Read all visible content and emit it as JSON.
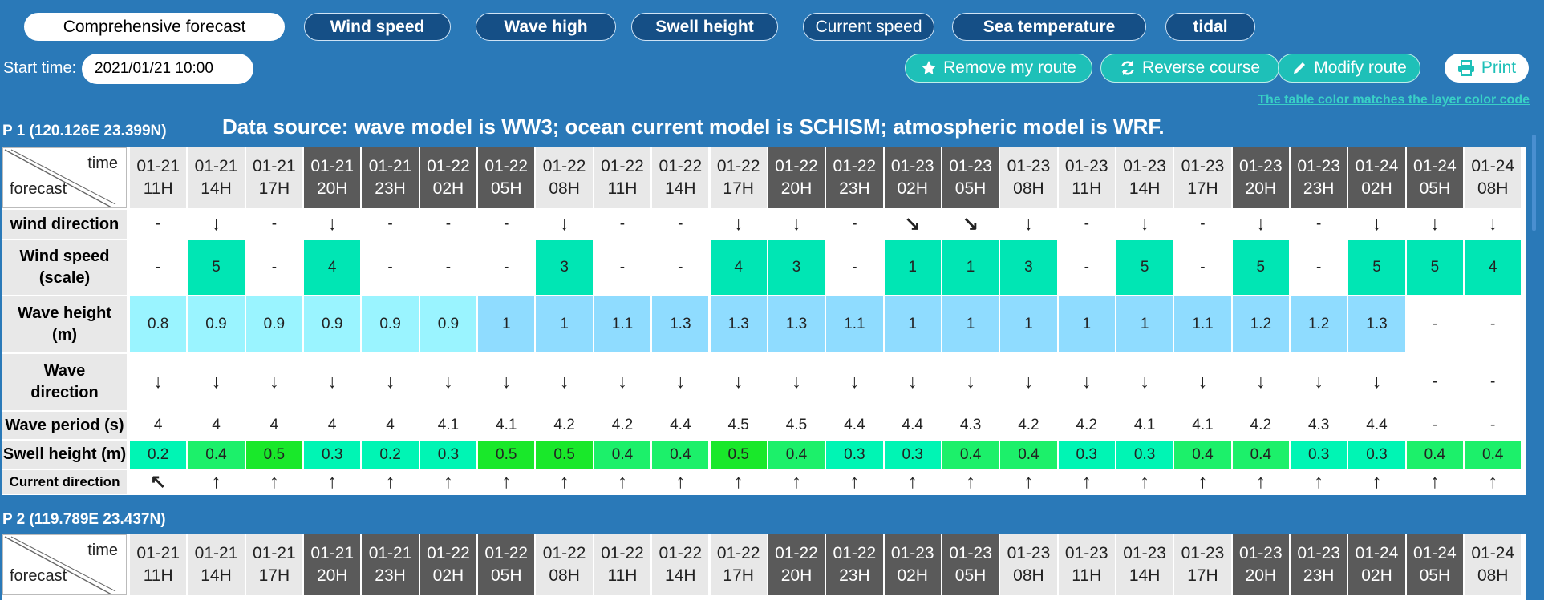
{
  "tabs": [
    {
      "label": "Comprehensive forecast",
      "active": true
    },
    {
      "label": "Wind speed"
    },
    {
      "label": "Wave high"
    },
    {
      "label": "Swell height"
    },
    {
      "label": "Current speed",
      "outline": true
    },
    {
      "label": "Sea temperature"
    },
    {
      "label": "tidal"
    }
  ],
  "start": {
    "label": "Start time:",
    "value": "2021/01/21 10:00"
  },
  "actions": [
    {
      "label": "Remove my route",
      "icon": "star-icon"
    },
    {
      "label": "Reverse course",
      "icon": "refresh-icon"
    },
    {
      "label": "Modify route",
      "icon": "pencil-icon"
    }
  ],
  "print_label": "Print",
  "color_note": "The table color matches the layer color code",
  "source_note": "Data source: wave model is WW3; ocean current model is SCHISM; atmospheric model is WRF.",
  "corner": {
    "time": "time",
    "forecast": "forecast"
  },
  "colors": {
    "background": "#2a79b8",
    "header_dark": "#5a5a5a",
    "header_light": "#e8e8e8",
    "wind_fill": "#00e6b4",
    "wave_light": "#9af4ff",
    "wave_mid": "#8fdcff",
    "swell_a": "#00f5b4",
    "swell_b": "#1cf06a",
    "swell_c": "#19e82a",
    "accent": "#1ec0b8"
  },
  "times": [
    {
      "d": "01-21",
      "h": "11H",
      "dark": false
    },
    {
      "d": "01-21",
      "h": "14H",
      "dark": false
    },
    {
      "d": "01-21",
      "h": "17H",
      "dark": false
    },
    {
      "d": "01-21",
      "h": "20H",
      "dark": true
    },
    {
      "d": "01-21",
      "h": "23H",
      "dark": true
    },
    {
      "d": "01-22",
      "h": "02H",
      "dark": true
    },
    {
      "d": "01-22",
      "h": "05H",
      "dark": true
    },
    {
      "d": "01-22",
      "h": "08H",
      "dark": false
    },
    {
      "d": "01-22",
      "h": "11H",
      "dark": false
    },
    {
      "d": "01-22",
      "h": "14H",
      "dark": false
    },
    {
      "d": "01-22",
      "h": "17H",
      "dark": false
    },
    {
      "d": "01-22",
      "h": "20H",
      "dark": true
    },
    {
      "d": "01-22",
      "h": "23H",
      "dark": true
    },
    {
      "d": "01-23",
      "h": "02H",
      "dark": true
    },
    {
      "d": "01-23",
      "h": "05H",
      "dark": true
    },
    {
      "d": "01-23",
      "h": "08H",
      "dark": false
    },
    {
      "d": "01-23",
      "h": "11H",
      "dark": false
    },
    {
      "d": "01-23",
      "h": "14H",
      "dark": false
    },
    {
      "d": "01-23",
      "h": "17H",
      "dark": false
    },
    {
      "d": "01-23",
      "h": "20H",
      "dark": true
    },
    {
      "d": "01-23",
      "h": "23H",
      "dark": true
    },
    {
      "d": "01-24",
      "h": "02H",
      "dark": true
    },
    {
      "d": "01-24",
      "h": "05H",
      "dark": true
    },
    {
      "d": "01-24",
      "h": "08H",
      "dark": false
    }
  ],
  "points": [
    {
      "title": "P 1 (120.126E 23.399N)",
      "rows": [
        {
          "label": "wind direction",
          "type": "arrow",
          "values": [
            "-",
            "↓",
            "-",
            "↓",
            "-",
            "-",
            "-",
            "↓",
            "-",
            "-",
            "↓",
            "↓",
            "-",
            "↘",
            "↘",
            "↓",
            "-",
            "↓",
            "-",
            "↓",
            "-",
            "↓",
            "↓",
            "↓"
          ]
        },
        {
          "label": "Wind speed (scale)",
          "type": "wind",
          "values": [
            "-",
            "5",
            "-",
            "4",
            "-",
            "-",
            "-",
            "3",
            "-",
            "-",
            "4",
            "3",
            "-",
            "1",
            "1",
            "3",
            "-",
            "5",
            "-",
            "5",
            "-",
            "5",
            "5",
            "4"
          ]
        },
        {
          "label": "Wave height (m)",
          "type": "wave",
          "values": [
            "0.8",
            "0.9",
            "0.9",
            "0.9",
            "0.9",
            "0.9",
            "1",
            "1",
            "1.1",
            "1.3",
            "1.3",
            "1.3",
            "1.1",
            "1",
            "1",
            "1",
            "1",
            "1",
            "1.1",
            "1.2",
            "1.2",
            "1.3",
            "-",
            "-"
          ]
        },
        {
          "label": "Wave direction",
          "type": "arrow",
          "values": [
            "↓",
            "↓",
            "↓",
            "↓",
            "↓",
            "↓",
            "↓",
            "↓",
            "↓",
            "↓",
            "↓",
            "↓",
            "↓",
            "↓",
            "↓",
            "↓",
            "↓",
            "↓",
            "↓",
            "↓",
            "↓",
            "↓",
            "-",
            "-"
          ]
        },
        {
          "label": "Wave period (s)",
          "type": "plain",
          "values": [
            "4",
            "4",
            "4",
            "4",
            "4",
            "4.1",
            "4.1",
            "4.2",
            "4.2",
            "4.4",
            "4.5",
            "4.5",
            "4.4",
            "4.4",
            "4.3",
            "4.2",
            "4.2",
            "4.1",
            "4.1",
            "4.2",
            "4.3",
            "4.4",
            "-",
            "-"
          ]
        },
        {
          "label": "Swell height (m)",
          "type": "swell",
          "values": [
            "0.2",
            "0.4",
            "0.5",
            "0.3",
            "0.2",
            "0.3",
            "0.5",
            "0.5",
            "0.4",
            "0.4",
            "0.5",
            "0.4",
            "0.3",
            "0.3",
            "0.4",
            "0.4",
            "0.3",
            "0.3",
            "0.4",
            "0.4",
            "0.3",
            "0.3",
            "0.4",
            "0.4"
          ]
        },
        {
          "label": "Current direction",
          "type": "arrow",
          "values": [
            "↖",
            "↑",
            "↑",
            "↑",
            "↑",
            "↑",
            "↑",
            "↑",
            "↑",
            "↑",
            "↑",
            "↑",
            "↑",
            "↑",
            "↑",
            "↑",
            "↑",
            "↑",
            "↑",
            "↑",
            "↑",
            "↑",
            "↑",
            "↑"
          ]
        }
      ]
    },
    {
      "title": "P 2 (119.789E 23.437N)",
      "rows": []
    }
  ]
}
